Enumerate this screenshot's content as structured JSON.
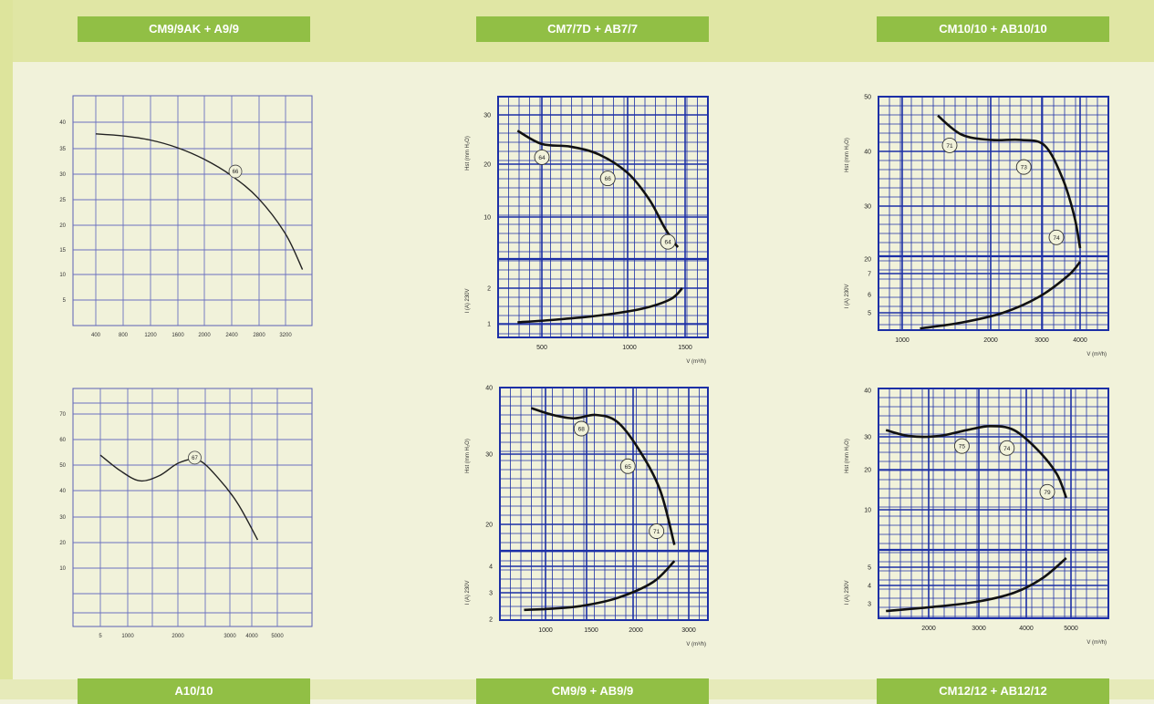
{
  "labels": {
    "top_left": "CM9/9AK + A9/9",
    "top_center": "CM7/7D + AB7/7",
    "top_right": "CM10/10 + AB10/10",
    "bottom_left": "A10/10",
    "bottom_center": "CM9/9 + AB9/9",
    "bottom_right": "CM12/12 + AB12/12"
  },
  "chart_data": [
    {
      "type": "line",
      "id": "top-left",
      "x_ticks": [
        "400",
        "800",
        "1200",
        "1600",
        "2000",
        "2400",
        "2800",
        "3200"
      ],
      "y_ticks": [
        "5",
        "10",
        "15",
        "20",
        "25",
        "30",
        "35",
        "40"
      ],
      "series": [
        {
          "x": [
            400,
            800,
            1200,
            1600,
            2000,
            2400,
            2800,
            3200,
            3450
          ],
          "y": [
            37.7,
            37.3,
            36.5,
            35,
            32.7,
            29.5,
            25,
            18,
            11
          ]
        }
      ],
      "annotations": [
        {
          "text": "66",
          "x": 2460,
          "y": 30.3
        }
      ],
      "xlim": [
        200,
        3500
      ],
      "ylim": [
        0,
        44
      ],
      "grid": true
    },
    {
      "type": "line",
      "id": "top-center",
      "ylabel": "Hst (mm H₂O)",
      "ylabel2": "I (A) 230V",
      "xlabel": "V (m³/h)",
      "x_ticks": [
        "500",
        "1000",
        "1500"
      ],
      "y_ticks_upper": [
        "10",
        "20",
        "30"
      ],
      "y_ticks_lower": [
        "1",
        "2"
      ],
      "series": [
        {
          "name": "pressure",
          "x": [
            330,
            500,
            700,
            900,
            1100,
            1250,
            1350,
            1420,
            1450
          ],
          "y": [
            27,
            24.5,
            24,
            22.5,
            19,
            14,
            9,
            6,
            5
          ]
        },
        {
          "name": "current",
          "x": [
            330,
            600,
            900,
            1200,
            1400,
            1480
          ],
          "y": [
            1.05,
            1.15,
            1.3,
            1.55,
            1.9,
            2.3
          ]
        }
      ],
      "annotations": [
        {
          "text": "64",
          "x": 500,
          "y": 22
        },
        {
          "text": "66",
          "x": 960,
          "y": 18
        },
        {
          "text": "64",
          "x": 1380,
          "y": 6
        }
      ],
      "grid": true
    },
    {
      "type": "line",
      "id": "top-right",
      "ylabel": "Hst (mm H₂O)",
      "ylabel2": "I (A) 230V",
      "xlabel": "V (m³/h)",
      "x_ticks": [
        "1000",
        "2000",
        "3000",
        "4000"
      ],
      "y_ticks_upper": [
        "20",
        "30",
        "40",
        "50"
      ],
      "y_ticks_lower": [
        "5",
        "6",
        "7"
      ],
      "series": [
        {
          "name": "pressure",
          "x": [
            1600,
            2000,
            2500,
            3000,
            3400,
            3700,
            3900,
            4000
          ],
          "y": [
            46.5,
            43,
            42,
            42,
            41,
            35,
            28,
            22
          ]
        },
        {
          "name": "current",
          "x": [
            1300,
            2000,
            2700,
            3300,
            3800,
            4000
          ],
          "y": [
            4.2,
            4.5,
            5,
            5.8,
            6.9,
            7.6
          ]
        }
      ],
      "annotations": [
        {
          "text": "71",
          "x": 1800,
          "y": 41
        },
        {
          "text": "73",
          "x": 3050,
          "y": 37
        },
        {
          "text": "74",
          "x": 3600,
          "y": 24
        }
      ],
      "grid": true
    },
    {
      "type": "line",
      "id": "bottom-left",
      "x_ticks": [
        "5",
        "1000",
        "2000",
        "3000",
        "4000",
        "5000"
      ],
      "y_ticks": [
        "10",
        "20",
        "30",
        "40",
        "50",
        "60",
        "70"
      ],
      "series": [
        {
          "x": [
            500,
            1000,
            1500,
            2000,
            2500,
            3000,
            3500,
            4000,
            4500
          ],
          "y": [
            54,
            48,
            44,
            46,
            51,
            52,
            45,
            35,
            21
          ]
        }
      ],
      "annotations": [
        {
          "text": "67",
          "x": 2900,
          "y": 53
        }
      ],
      "grid": true
    },
    {
      "type": "line",
      "id": "bottom-center",
      "ylabel": "Hst (mm H₂O)",
      "ylabel2": "I (A) 230V",
      "xlabel": "V (m³/h)",
      "x_ticks": [
        "1000",
        "1500",
        "2000",
        "3000"
      ],
      "y_ticks_upper": [
        "20",
        "30",
        "40"
      ],
      "y_ticks_lower": [
        "2",
        "3",
        "4"
      ],
      "series": [
        {
          "name": "pressure",
          "x": [
            800,
            1100,
            1400,
            1700,
            2000,
            2300,
            2600,
            2800
          ],
          "y": [
            37,
            36,
            35.5,
            36,
            35,
            31,
            25,
            17
          ]
        },
        {
          "name": "current",
          "x": [
            700,
            1100,
            1500,
            2000,
            2500,
            2800
          ],
          "y": [
            2.35,
            2.4,
            2.5,
            2.8,
            3.4,
            4.2
          ]
        }
      ],
      "annotations": [
        {
          "text": "68",
          "x": 1500,
          "y": 34
        },
        {
          "text": "65",
          "x": 2150,
          "y": 28.5
        },
        {
          "text": "71",
          "x": 2550,
          "y": 19
        }
      ],
      "grid": true
    },
    {
      "type": "line",
      "id": "bottom-right",
      "ylabel": "Hst (mm H₂O)",
      "ylabel2": "I (A) 230V",
      "xlabel": "V (m³/h)",
      "x_ticks": [
        "2000",
        "3000",
        "4000",
        "5000"
      ],
      "y_ticks_upper": [
        "10",
        "20",
        "30",
        "40"
      ],
      "y_ticks_lower": [
        "3",
        "4",
        "5"
      ],
      "series": [
        {
          "name": "pressure",
          "x": [
            1100,
            1600,
            2200,
            2800,
            3300,
            3800,
            4300,
            4700,
            4900
          ],
          "y": [
            30,
            28.5,
            28.5,
            30,
            31,
            30,
            25,
            19,
            13
          ]
        },
        {
          "name": "current",
          "x": [
            1100,
            2000,
            3000,
            3800,
            4400,
            4900
          ],
          "y": [
            2.6,
            2.8,
            3.1,
            3.6,
            4.4,
            5.5
          ]
        }
      ],
      "annotations": [
        {
          "text": "75",
          "x": 2700,
          "y": 26
        },
        {
          "text": "74",
          "x": 3650,
          "y": 25.5
        },
        {
          "text": "79",
          "x": 4500,
          "y": 14.5
        }
      ],
      "grid": true
    }
  ]
}
